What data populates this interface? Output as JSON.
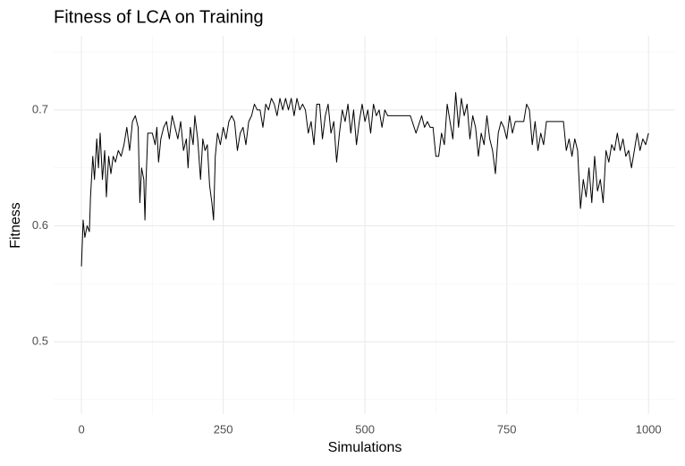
{
  "chart_data": {
    "type": "line",
    "title": "Fitness of LCA on Training",
    "x_label": "Simulations",
    "y_label": "Fitness",
    "x": [
      0,
      3,
      6,
      10,
      14,
      16,
      20,
      23,
      27,
      30,
      33,
      37,
      41,
      44,
      48,
      52,
      56,
      60,
      65,
      70,
      75,
      80,
      85,
      90,
      95,
      100,
      103,
      106,
      110,
      112,
      114,
      117,
      125,
      130,
      133,
      136,
      140,
      145,
      150,
      155,
      160,
      165,
      170,
      175,
      180,
      185,
      188,
      192,
      197,
      200,
      205,
      210,
      214,
      218,
      222,
      226,
      230,
      233,
      236,
      240,
      245,
      250,
      255,
      260,
      265,
      270,
      275,
      280,
      285,
      290,
      295,
      300,
      305,
      310,
      315,
      320,
      325,
      330,
      335,
      340,
      345,
      350,
      355,
      360,
      365,
      370,
      375,
      380,
      385,
      390,
      395,
      400,
      405,
      410,
      415,
      420,
      425,
      430,
      435,
      440,
      445,
      450,
      455,
      460,
      465,
      470,
      475,
      480,
      485,
      490,
      495,
      500,
      505,
      510,
      515,
      520,
      525,
      530,
      535,
      540,
      550,
      560,
      570,
      580,
      590,
      600,
      605,
      610,
      615,
      620,
      625,
      630,
      635,
      640,
      645,
      650,
      655,
      660,
      665,
      670,
      675,
      680,
      685,
      690,
      695,
      700,
      705,
      710,
      715,
      720,
      725,
      730,
      735,
      740,
      745,
      750,
      755,
      760,
      765,
      770,
      780,
      785,
      790,
      795,
      800,
      805,
      810,
      815,
      820,
      825,
      835,
      845,
      850,
      855,
      860,
      865,
      870,
      875,
      880,
      885,
      890,
      895,
      900,
      905,
      910,
      915,
      920,
      925,
      930,
      935,
      940,
      945,
      950,
      955,
      960,
      965,
      970,
      975,
      980,
      985,
      990,
      995,
      1000
    ],
    "series": [
      {
        "color": "#000000",
        "values": [
          0.565,
          0.605,
          0.59,
          0.6,
          0.595,
          0.625,
          0.66,
          0.64,
          0.675,
          0.65,
          0.68,
          0.64,
          0.665,
          0.625,
          0.66,
          0.645,
          0.66,
          0.655,
          0.665,
          0.66,
          0.67,
          0.685,
          0.665,
          0.69,
          0.695,
          0.685,
          0.62,
          0.65,
          0.64,
          0.605,
          0.64,
          0.68,
          0.68,
          0.67,
          0.685,
          0.655,
          0.675,
          0.685,
          0.69,
          0.675,
          0.695,
          0.685,
          0.675,
          0.69,
          0.665,
          0.675,
          0.65,
          0.685,
          0.67,
          0.695,
          0.675,
          0.64,
          0.675,
          0.665,
          0.67,
          0.635,
          0.62,
          0.605,
          0.66,
          0.68,
          0.67,
          0.685,
          0.675,
          0.69,
          0.695,
          0.69,
          0.665,
          0.68,
          0.685,
          0.67,
          0.69,
          0.695,
          0.705,
          0.7,
          0.7,
          0.685,
          0.705,
          0.7,
          0.71,
          0.705,
          0.695,
          0.71,
          0.7,
          0.71,
          0.7,
          0.71,
          0.695,
          0.71,
          0.7,
          0.705,
          0.7,
          0.68,
          0.69,
          0.67,
          0.705,
          0.705,
          0.675,
          0.695,
          0.705,
          0.68,
          0.69,
          0.655,
          0.68,
          0.7,
          0.69,
          0.705,
          0.68,
          0.7,
          0.67,
          0.69,
          0.705,
          0.69,
          0.7,
          0.68,
          0.705,
          0.695,
          0.7,
          0.685,
          0.7,
          0.695,
          0.695,
          0.695,
          0.695,
          0.695,
          0.68,
          0.695,
          0.685,
          0.69,
          0.685,
          0.685,
          0.66,
          0.66,
          0.68,
          0.67,
          0.705,
          0.69,
          0.675,
          0.715,
          0.685,
          0.71,
          0.695,
          0.705,
          0.675,
          0.695,
          0.685,
          0.66,
          0.68,
          0.67,
          0.695,
          0.675,
          0.665,
          0.645,
          0.68,
          0.69,
          0.685,
          0.675,
          0.695,
          0.68,
          0.69,
          0.69,
          0.69,
          0.705,
          0.7,
          0.67,
          0.69,
          0.665,
          0.68,
          0.67,
          0.69,
          0.69,
          0.69,
          0.69,
          0.69,
          0.665,
          0.675,
          0.66,
          0.675,
          0.665,
          0.615,
          0.64,
          0.625,
          0.65,
          0.62,
          0.66,
          0.63,
          0.64,
          0.62,
          0.665,
          0.655,
          0.67,
          0.665,
          0.68,
          0.665,
          0.675,
          0.66,
          0.665,
          0.65,
          0.665,
          0.68,
          0.665,
          0.675,
          0.67,
          0.68
        ]
      }
    ],
    "xlim": [
      -49,
      1047
    ],
    "xticks": [
      0,
      250,
      500,
      750,
      1000
    ],
    "x_minor_ticks": [
      125,
      375,
      625,
      875
    ],
    "ylim": [
      0.4375,
      0.764
    ],
    "yticks": [
      0.5,
      0.6,
      0.7
    ],
    "y_minor_ticks": [
      0.45,
      0.55,
      0.65,
      0.75
    ],
    "grid": true
  }
}
